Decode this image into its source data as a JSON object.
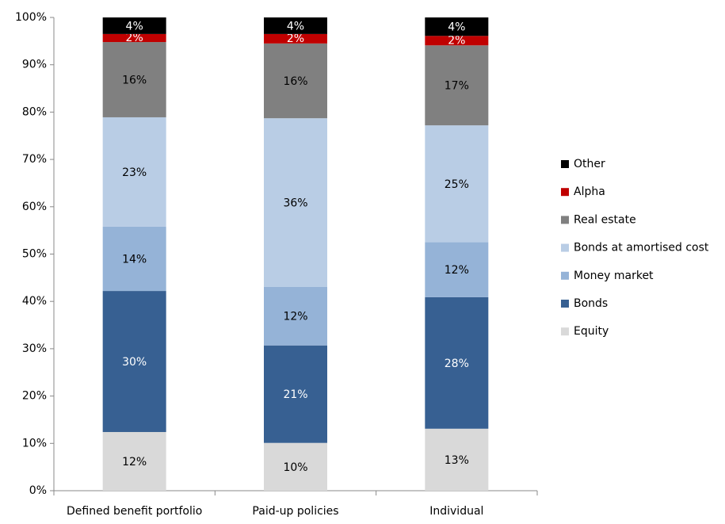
{
  "chart_data": {
    "type": "stacked_bar",
    "categories": [
      "Defined benefit portfolio",
      "Paid-up policies",
      "Individual"
    ],
    "series": [
      {
        "name": "Equity",
        "color": "#d9d9d9",
        "values": [
          12.4,
          10.1,
          13.1
        ],
        "value_labels": [
          "12%",
          "10%",
          "13%"
        ]
      },
      {
        "name": "Bonds",
        "color": "#376092",
        "values": [
          29.8,
          20.6,
          27.8
        ],
        "value_labels": [
          "30%",
          "21%",
          "28%"
        ]
      },
      {
        "name": "Money market",
        "color": "#95b3d7",
        "values": [
          13.6,
          12.4,
          11.6
        ],
        "value_labels": [
          "14%",
          "12%",
          "12%"
        ]
      },
      {
        "name": "Bonds at amortised  cost",
        "color": "#b9cde5",
        "values": [
          23.1,
          35.6,
          24.7
        ],
        "value_labels": [
          "23%",
          "36%",
          "25%"
        ]
      },
      {
        "name": "Real estate",
        "color": "#808080",
        "values": [
          15.9,
          15.8,
          16.9
        ],
        "value_labels": [
          "16%",
          "16%",
          "17%"
        ]
      },
      {
        "name": "Alpha",
        "color": "#c00000",
        "values": [
          1.7,
          2.0,
          2.0
        ],
        "value_labels": [
          "2%",
          "2%",
          "2%"
        ]
      },
      {
        "name": "Other",
        "color": "#000000",
        "values": [
          3.5,
          3.5,
          3.9
        ],
        "value_labels": [
          "4%",
          "4%",
          "4%"
        ]
      }
    ],
    "ylim": [
      0,
      100
    ],
    "yticks": [
      {
        "value": 0,
        "label": "0%"
      },
      {
        "value": 10,
        "label": "10%"
      },
      {
        "value": 20,
        "label": "20%"
      },
      {
        "value": 30,
        "label": "30%"
      },
      {
        "value": 40,
        "label": "40%"
      },
      {
        "value": 50,
        "label": "50%"
      },
      {
        "value": 60,
        "label": "60%"
      },
      {
        "value": 70,
        "label": "70%"
      },
      {
        "value": 80,
        "label": "80%"
      },
      {
        "value": 90,
        "label": "90%"
      },
      {
        "value": 100,
        "label": "100%"
      }
    ],
    "legend": "right"
  }
}
